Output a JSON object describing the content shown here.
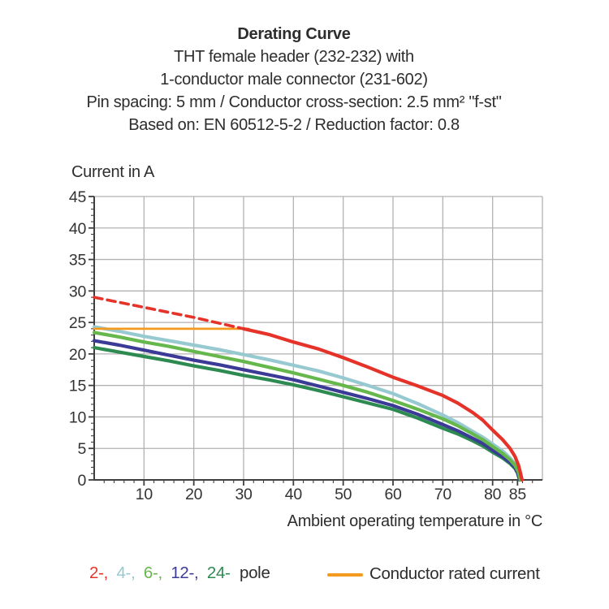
{
  "header": {
    "title": "Derating Curve",
    "subtitle1": "THT female header (232-232) with",
    "subtitle2": "1-conductor male connector (231-602)",
    "subtitle3": "Pin spacing: 5 mm / Conductor cross-section: 2.5 mm² \"f-st\"",
    "subtitle4": "Based on: EN 60512-5-2 / Reduction factor: 0.8"
  },
  "legend": {
    "pole_tokens": [
      {
        "label": "2-,",
        "color": "#e5332a"
      },
      {
        "label": "4-,",
        "color": "#97c9d1"
      },
      {
        "label": "6-,",
        "color": "#66b84c"
      },
      {
        "label": "12-,",
        "color": "#3b3b97"
      },
      {
        "label": "24-",
        "color": "#2d8b51"
      },
      {
        "label": "pole",
        "color": "#2d2d2d"
      }
    ],
    "rated": {
      "label": "Conductor rated current",
      "color": "#f49b1f"
    }
  },
  "chart_data": {
    "type": "line",
    "title": "Derating Curve",
    "xlabel": "Ambient operating temperature in °C",
    "ylabel": "Current in A",
    "xlim": [
      0,
      90
    ],
    "ylim": [
      0,
      45
    ],
    "grid": true,
    "x_major_ticks": [
      10,
      20,
      30,
      40,
      50,
      60,
      70,
      80,
      85
    ],
    "x_minor_tick_step": 2,
    "y_major_ticks": [
      0,
      5,
      10,
      15,
      20,
      25,
      30,
      35,
      40,
      45
    ],
    "y_minor_tick_step": 1,
    "x_gridlines": [
      10,
      20,
      30,
      40,
      50,
      60,
      70,
      80,
      90
    ],
    "y_gridlines": [
      5,
      10,
      15,
      20,
      25,
      30,
      35,
      40,
      45
    ],
    "axis_color": "#3f3f3f",
    "grid_color": "#b2b2b2",
    "tick_label_color": "#333333",
    "series": [
      {
        "name": "4-pole",
        "color": "#97c9d1",
        "style": "solid",
        "width": 4.2,
        "points": [
          [
            0,
            24.3
          ],
          [
            5,
            23.6
          ],
          [
            10,
            22.8
          ],
          [
            15,
            22.1
          ],
          [
            20,
            21.4
          ],
          [
            25,
            20.7
          ],
          [
            30,
            19.9
          ],
          [
            35,
            19.1
          ],
          [
            40,
            18.2
          ],
          [
            45,
            17.3
          ],
          [
            50,
            16.2
          ],
          [
            55,
            15.0
          ],
          [
            60,
            13.7
          ],
          [
            65,
            12.1
          ],
          [
            70,
            10.3
          ],
          [
            73,
            9.1
          ],
          [
            76,
            7.7
          ],
          [
            78,
            6.8
          ],
          [
            80,
            5.7
          ],
          [
            82,
            4.6
          ],
          [
            83.5,
            3.5
          ],
          [
            84.5,
            2.5
          ],
          [
            85.1,
            1.5
          ],
          [
            85.7,
            0
          ]
        ]
      },
      {
        "name": "Conductor rated current",
        "color": "#f49b1f",
        "style": "solid",
        "width": 2.8,
        "points": [
          [
            0,
            24
          ],
          [
            31,
            24
          ]
        ]
      },
      {
        "name": "24-pole",
        "color": "#2d8b51",
        "style": "solid",
        "width": 4.2,
        "points": [
          [
            0,
            21.0
          ],
          [
            5,
            20.3
          ],
          [
            10,
            19.6
          ],
          [
            15,
            18.9
          ],
          [
            20,
            18.1
          ],
          [
            25,
            17.4
          ],
          [
            30,
            16.6
          ],
          [
            35,
            15.9
          ],
          [
            40,
            15.1
          ],
          [
            45,
            14.2
          ],
          [
            50,
            13.2
          ],
          [
            55,
            12.2
          ],
          [
            60,
            11.2
          ],
          [
            65,
            9.8
          ],
          [
            70,
            8.2
          ],
          [
            73,
            7.3
          ],
          [
            76,
            6.2
          ],
          [
            78,
            5.4
          ],
          [
            80,
            4.4
          ],
          [
            82,
            3.5
          ],
          [
            83.5,
            2.6
          ],
          [
            84.5,
            1.8
          ],
          [
            85,
            1.1
          ],
          [
            85.4,
            0
          ]
        ]
      },
      {
        "name": "12-pole",
        "color": "#3b3b97",
        "style": "solid",
        "width": 4.2,
        "points": [
          [
            0,
            22.1
          ],
          [
            5,
            21.4
          ],
          [
            10,
            20.6
          ],
          [
            15,
            19.8
          ],
          [
            20,
            19.0
          ],
          [
            25,
            18.3
          ],
          [
            30,
            17.5
          ],
          [
            35,
            16.7
          ],
          [
            40,
            15.9
          ],
          [
            45,
            14.9
          ],
          [
            50,
            13.9
          ],
          [
            55,
            12.9
          ],
          [
            60,
            11.8
          ],
          [
            65,
            10.4
          ],
          [
            70,
            8.8
          ],
          [
            73,
            7.8
          ],
          [
            76,
            6.6
          ],
          [
            78,
            5.8
          ],
          [
            80,
            4.7
          ],
          [
            82,
            3.7
          ],
          [
            83.5,
            2.8
          ],
          [
            84.5,
            2.0
          ],
          [
            85,
            1.2
          ],
          [
            85.5,
            0
          ]
        ]
      },
      {
        "name": "6-pole",
        "color": "#66b84c",
        "style": "solid",
        "width": 4.2,
        "points": [
          [
            0,
            23.4
          ],
          [
            5,
            22.7
          ],
          [
            10,
            21.9
          ],
          [
            15,
            21.2
          ],
          [
            20,
            20.4
          ],
          [
            25,
            19.6
          ],
          [
            30,
            18.8
          ],
          [
            35,
            17.9
          ],
          [
            40,
            17.0
          ],
          [
            45,
            16.0
          ],
          [
            50,
            15.0
          ],
          [
            55,
            13.9
          ],
          [
            60,
            12.6
          ],
          [
            65,
            11.2
          ],
          [
            70,
            9.7
          ],
          [
            73,
            8.6
          ],
          [
            76,
            7.3
          ],
          [
            78,
            6.4
          ],
          [
            80,
            5.3
          ],
          [
            82,
            4.2
          ],
          [
            83.5,
            3.2
          ],
          [
            84.5,
            2.3
          ],
          [
            85.1,
            1.4
          ],
          [
            85.6,
            0
          ]
        ]
      },
      {
        "name": "2-pole (dashed segment below rated current)",
        "color": "#e5332a",
        "style": "dashed",
        "width": 3.6,
        "points": [
          [
            0,
            29
          ],
          [
            5,
            28.2
          ],
          [
            10,
            27.4
          ],
          [
            15,
            26.6
          ],
          [
            20,
            25.8
          ],
          [
            25,
            24.9
          ],
          [
            30,
            24
          ]
        ]
      },
      {
        "name": "2-pole",
        "color": "#e5332a",
        "style": "solid",
        "width": 4.2,
        "points": [
          [
            30,
            24
          ],
          [
            35,
            23.1
          ],
          [
            40,
            21.9
          ],
          [
            45,
            20.8
          ],
          [
            50,
            19.4
          ],
          [
            55,
            17.9
          ],
          [
            60,
            16.3
          ],
          [
            65,
            14.9
          ],
          [
            70,
            13.4
          ],
          [
            73,
            12.2
          ],
          [
            76,
            10.7
          ],
          [
            78,
            9.5
          ],
          [
            80,
            7.9
          ],
          [
            82,
            6.4
          ],
          [
            83.5,
            5.0
          ],
          [
            84.5,
            3.7
          ],
          [
            85.2,
            2.3
          ],
          [
            85.6,
            1.1
          ],
          [
            85.9,
            0
          ]
        ]
      }
    ]
  }
}
